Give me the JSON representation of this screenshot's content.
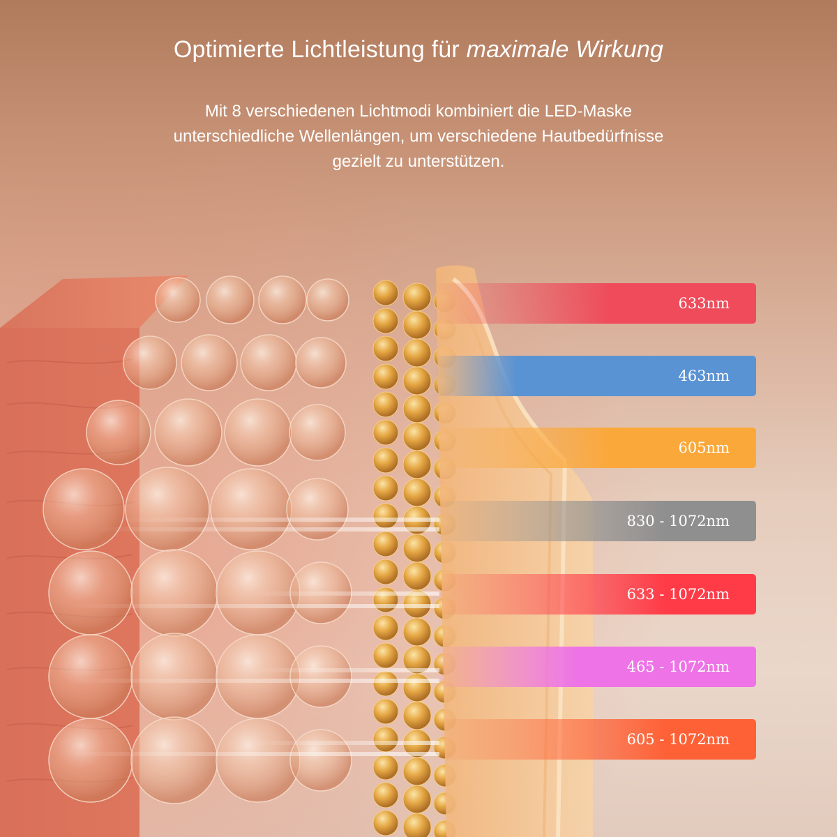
{
  "header": {
    "title_plain": "Optimierte Lichtleistung für",
    "title_emphasis": "maximale Wirkung",
    "description_line1": "Mit 8 verschiedenen Lichtmodi kombiniert die LED-Maske",
    "description_line2": "unterschiedliche Wellenlängen, um verschiedene Hautbedürfnisse",
    "description_line3": "gezielt zu unterstützen."
  },
  "bands": [
    {
      "label": "633nm",
      "color": "#ef4b5a",
      "fade": 0.55
    },
    {
      "label": "463nm",
      "color": "#5a93d3",
      "fade": 0.26
    },
    {
      "label": "605nm",
      "color": "#fba83a",
      "fade": 0.55
    },
    {
      "label": "830 - 1072nm",
      "color": "#8f8f8f",
      "fade": 0.72
    },
    {
      "label": "633 - 1072nm",
      "color": "#ff3b47",
      "fade": 0.72
    },
    {
      "label": "465 - 1072nm",
      "color": "#ee73e6",
      "fade": 0.45
    },
    {
      "label": "605 - 1072nm",
      "color": "#ff6136",
      "fade": 0.72
    }
  ]
}
